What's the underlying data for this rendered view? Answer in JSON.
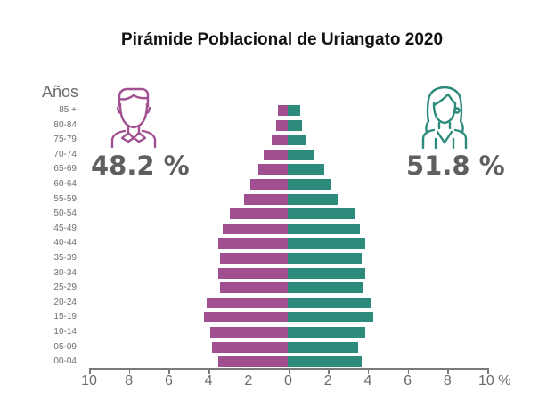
{
  "title": "Pirámide Poblacional de Uriangato 2020",
  "y_axis_label": "Años",
  "male": {
    "percent_label": "48.2 %",
    "color": "#A05090",
    "icon": "male-person-icon"
  },
  "female": {
    "percent_label": "51.8 %",
    "color": "#2C8B7B",
    "icon": "female-person-icon"
  },
  "x_tick_labels": [
    "10",
    "8",
    "6",
    "4",
    "2",
    "0",
    "2",
    "4",
    "6",
    "8",
    "10 %"
  ],
  "chart_data": {
    "type": "bar",
    "orientation": "horizontal-population-pyramid",
    "title": "Pirámide Poblacional de Uriangato 2020",
    "ylabel": "Años",
    "xlabel": "%",
    "xlim": [
      -10,
      10
    ],
    "grid": false,
    "categories": [
      "85 +",
      "80-84",
      "75-79",
      "70-74",
      "65-69",
      "60-64",
      "55-59",
      "50-54",
      "45-49",
      "40-44",
      "35-39",
      "30-34",
      "25-29",
      "20-24",
      "15-19",
      "10-14",
      "05-09",
      "00-04"
    ],
    "series": [
      {
        "name": "Hombres",
        "total_percent": 48.2,
        "color": "#A05090",
        "values": [
          0.5,
          0.6,
          0.8,
          1.2,
          1.5,
          1.9,
          2.2,
          2.9,
          3.3,
          3.5,
          3.4,
          3.5,
          3.4,
          4.1,
          4.2,
          3.9,
          3.8,
          3.5
        ]
      },
      {
        "name": "Mujeres",
        "total_percent": 51.8,
        "color": "#2C8B7B",
        "values": [
          0.6,
          0.7,
          0.9,
          1.3,
          1.8,
          2.2,
          2.5,
          3.4,
          3.6,
          3.9,
          3.7,
          3.9,
          3.8,
          4.2,
          4.3,
          3.9,
          3.5,
          3.7
        ]
      }
    ]
  }
}
